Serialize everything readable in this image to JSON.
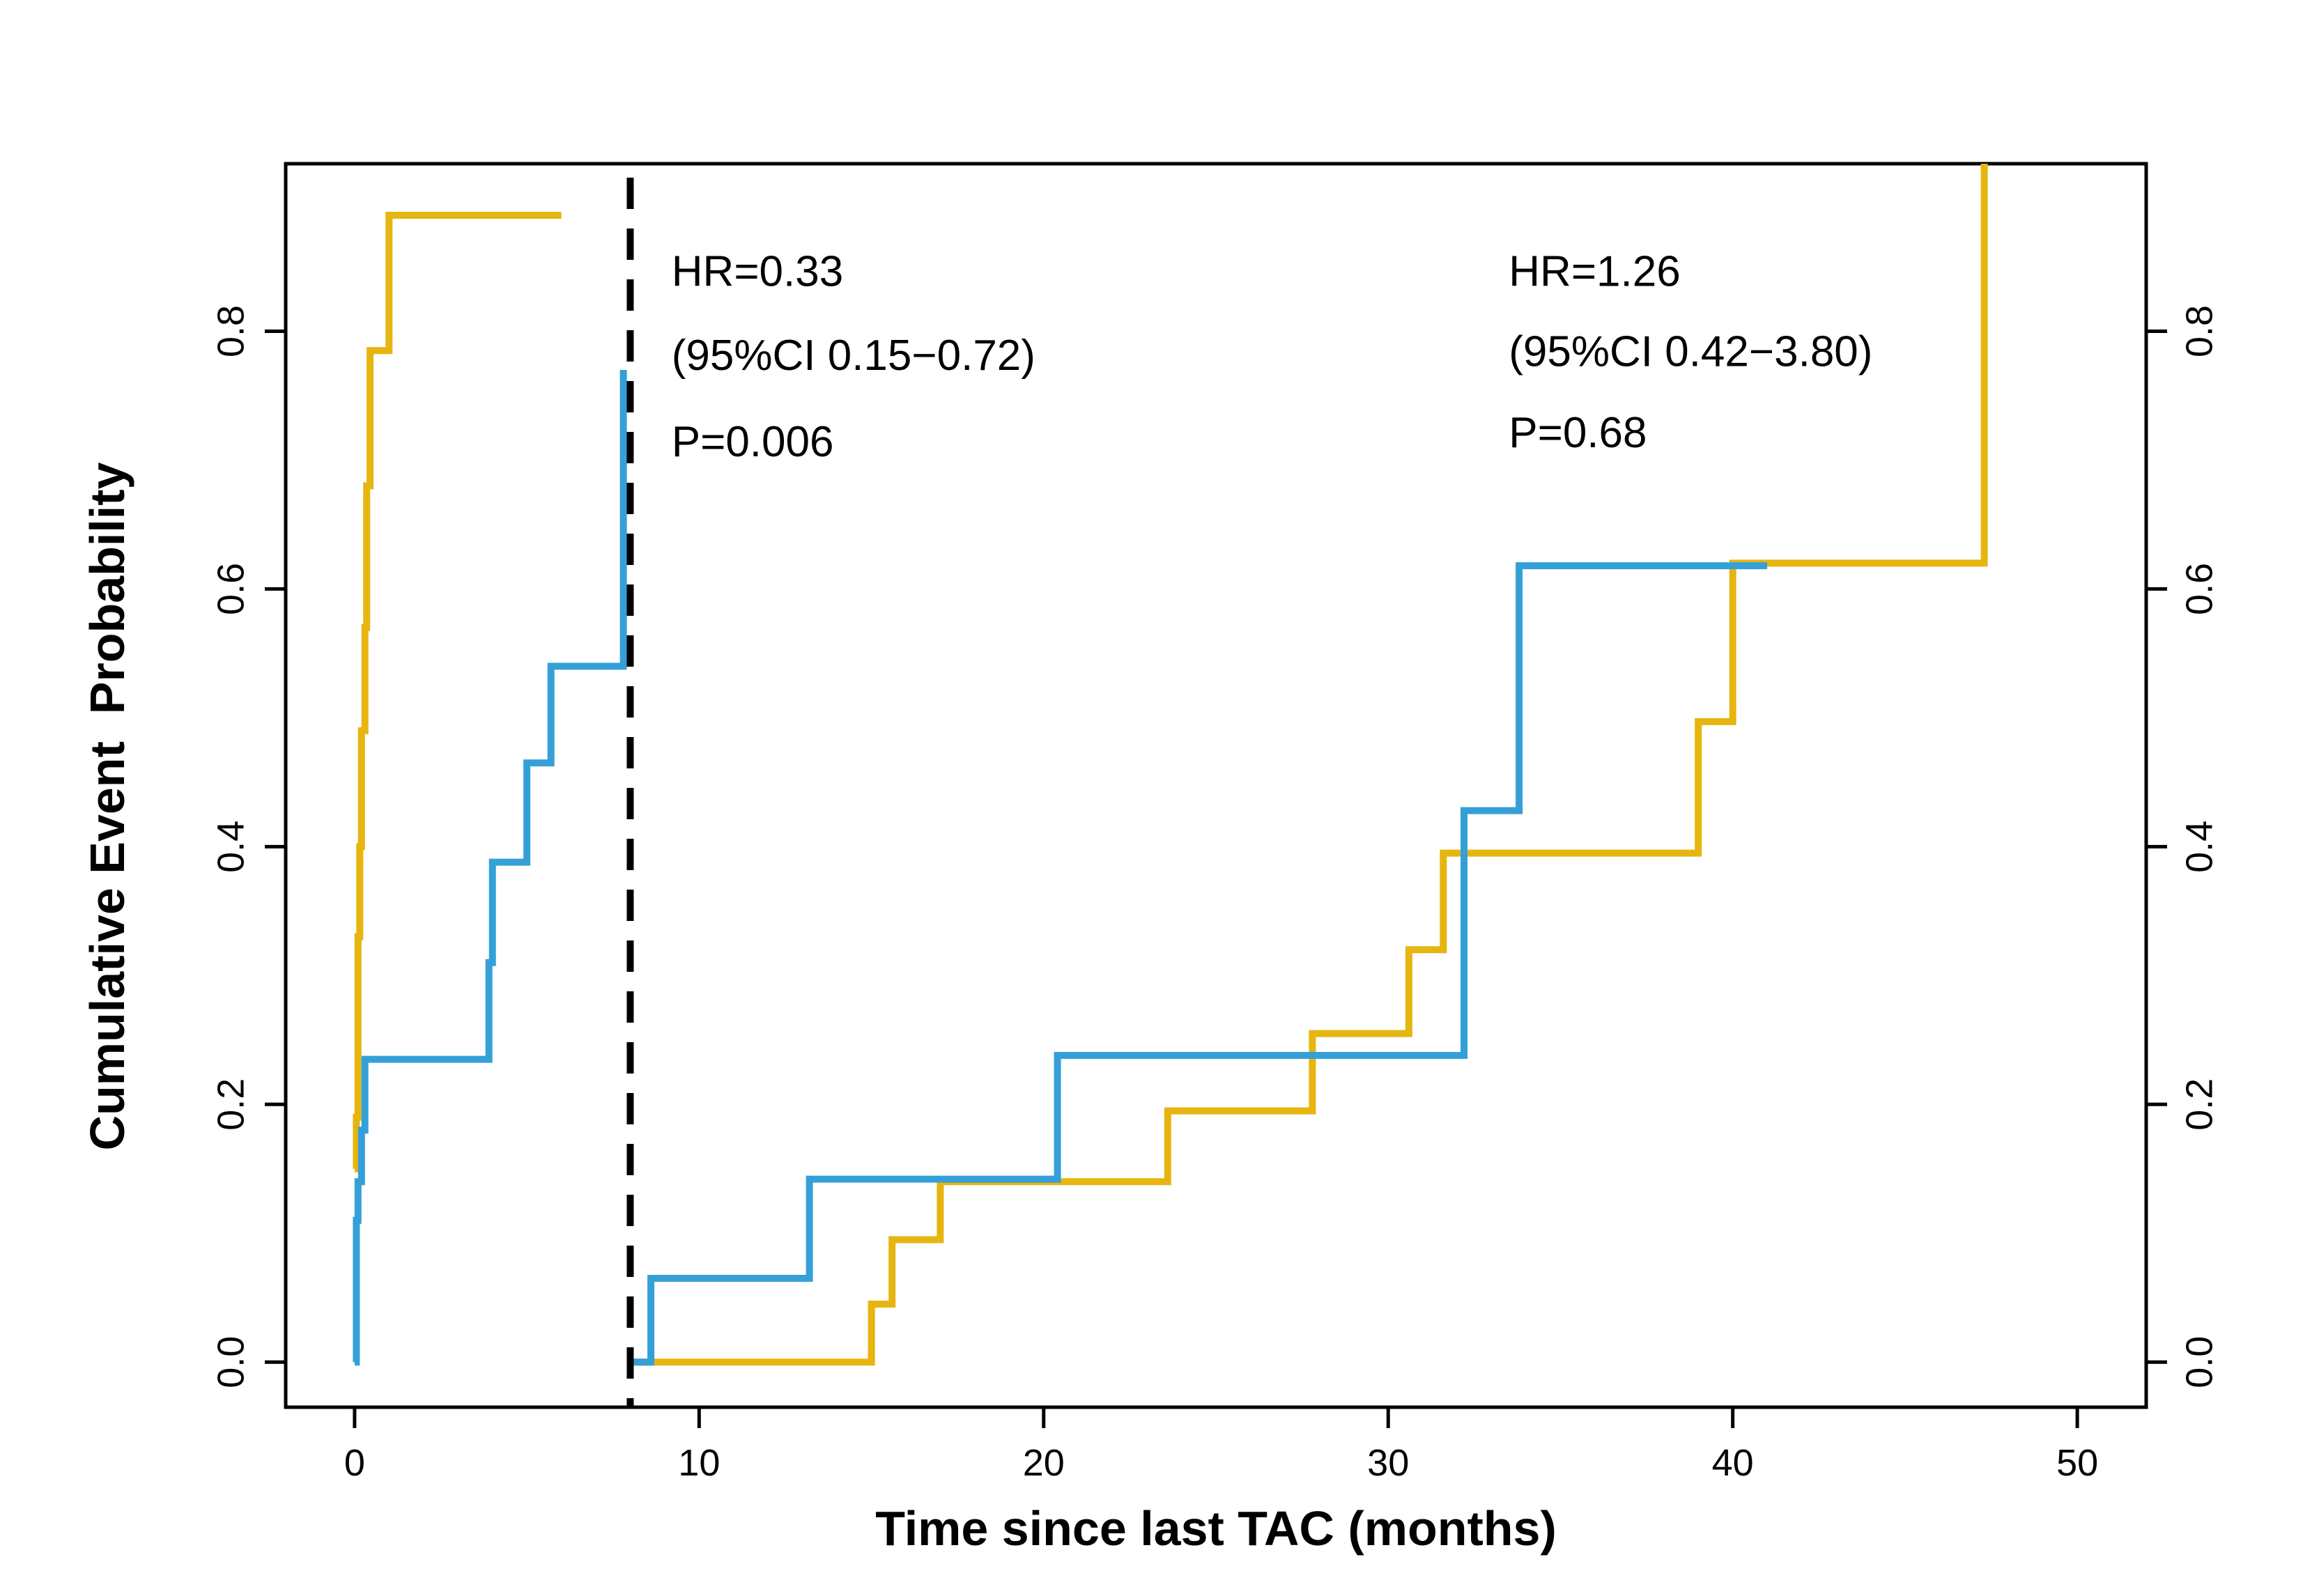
{
  "chart_data": {
    "type": "line",
    "step": true,
    "xlabel": "Time since last TAC (months)",
    "ylabel": "Cumulative Event  Probability",
    "xlim": [
      -2,
      52
    ],
    "ylim": [
      -0.035,
      0.93
    ],
    "xticks": [
      "0",
      "10",
      "20",
      "30",
      "40",
      "50"
    ],
    "yticks_left": [
      "0.0",
      "0.2",
      "0.4",
      "0.6",
      "0.8"
    ],
    "yticks_right": [
      "0.0",
      "0.2",
      "0.4",
      "0.6",
      "0.8"
    ],
    "grid": false,
    "legend": "none",
    "cutpoint": {
      "x": 8,
      "style": "dashed",
      "color": "#000000"
    },
    "annotations": [
      {
        "lines": [
          "HR=0.33",
          "(95%CI 0.15−0.72)",
          "P=0.006"
        ],
        "x": 9.2,
        "y": [
          0.835,
          0.77,
          0.703
        ]
      },
      {
        "lines": [
          "HR=1.26",
          "(95%CI 0.42−3.80)",
          "P=0.68"
        ],
        "x": 33.5,
        "y": [
          0.835,
          0.773,
          0.71
        ]
      }
    ],
    "series": [
      {
        "color": "#E6B50F",
        "segments": [
          {
            "x": [
              0.0,
              0.05,
              0.1,
              0.15,
              0.2,
              0.3,
              0.35,
              0.45,
              1.0,
              6.0
            ],
            "y": [
              0.15,
              0.19,
              0.33,
              0.4,
              0.49,
              0.57,
              0.68,
              0.785,
              0.89,
              0.89
            ]
          },
          {
            "x": [
              8.0,
              15.0,
              15.6,
              17.0,
              23.6,
              27.8,
              30.6,
              31.6,
              39.0,
              40.0,
              47.3,
              47.3
            ],
            "y": [
              0.0,
              0.045,
              0.095,
              0.14,
              0.195,
              0.255,
              0.32,
              0.395,
              0.497,
              0.62,
              0.62,
              0.93
            ]
          }
        ]
      },
      {
        "color": "#35A0D8",
        "segments": [
          {
            "x": [
              0.0,
              0.05,
              0.1,
              0.2,
              0.3,
              3.9,
              4.0,
              5.0,
              5.7,
              7.8,
              7.8
            ],
            "y": [
              0.0,
              0.11,
              0.14,
              0.18,
              0.235,
              0.31,
              0.388,
              0.465,
              0.54,
              0.54,
              0.77
            ]
          },
          {
            "x": [
              8.0,
              8.6,
              13.2,
              20.4,
              32.2,
              33.8,
              41.0
            ],
            "y": [
              0.0,
              0.065,
              0.142,
              0.238,
              0.428,
              0.618,
              0.618
            ]
          }
        ]
      }
    ]
  }
}
